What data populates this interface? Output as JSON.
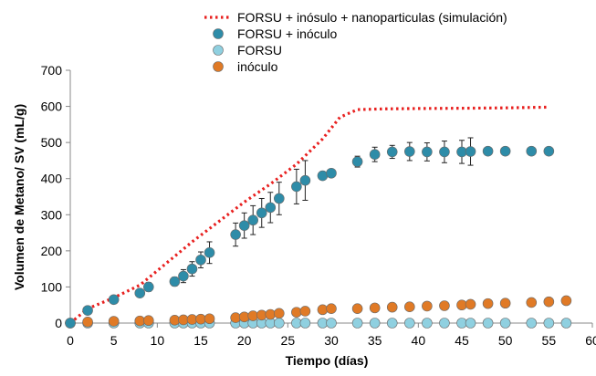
{
  "chart_data": {
    "type": "scatter",
    "xlabel": "Tiempo (días)",
    "ylabel": "Volumen de Metano/ SV (mL/g)",
    "xlim": [
      0,
      60
    ],
    "ylim": [
      0,
      700
    ],
    "x_ticks": [
      0,
      5,
      10,
      15,
      20,
      25,
      30,
      35,
      40,
      45,
      50,
      55,
      60
    ],
    "y_ticks": [
      0,
      100,
      200,
      300,
      400,
      500,
      600,
      700
    ],
    "grid": false,
    "legend_position": "top",
    "series": [
      {
        "name": "FORSU + inósulo + nanoparticulas (simulación)",
        "kind": "line",
        "style": "dotted",
        "color": "#e8201f",
        "points": [
          [
            0,
            0
          ],
          [
            2,
            40
          ],
          [
            5,
            70
          ],
          [
            8,
            105
          ],
          [
            11,
            165
          ],
          [
            14,
            225
          ],
          [
            17,
            280
          ],
          [
            20,
            335
          ],
          [
            23,
            385
          ],
          [
            26,
            440
          ],
          [
            29,
            510
          ],
          [
            31,
            570
          ],
          [
            33,
            591
          ],
          [
            36,
            593
          ],
          [
            40,
            594
          ],
          [
            45,
            595
          ],
          [
            50,
            596
          ],
          [
            55,
            598
          ]
        ]
      },
      {
        "name": "FORSU + inóculo",
        "kind": "markers",
        "color": "#2e8ca8",
        "points": [
          [
            0,
            0,
            0
          ],
          [
            2,
            35,
            0
          ],
          [
            5,
            65,
            0
          ],
          [
            8,
            83,
            10
          ],
          [
            9,
            100,
            12
          ],
          [
            12,
            115,
            12
          ],
          [
            13,
            130,
            18
          ],
          [
            14,
            150,
            20
          ],
          [
            15,
            175,
            22
          ],
          [
            16,
            195,
            30
          ],
          [
            19,
            245,
            32
          ],
          [
            20,
            270,
            35
          ],
          [
            21,
            285,
            40
          ],
          [
            22,
            305,
            40
          ],
          [
            23,
            320,
            42
          ],
          [
            24,
            345,
            45
          ],
          [
            26,
            378,
            48
          ],
          [
            27,
            395,
            55
          ],
          [
            29,
            408,
            0
          ],
          [
            30,
            415,
            0
          ],
          [
            33,
            447,
            15
          ],
          [
            35,
            467,
            20
          ],
          [
            37,
            474,
            18
          ],
          [
            39,
            475,
            25
          ],
          [
            41,
            474,
            25
          ],
          [
            43,
            474,
            30
          ],
          [
            45,
            474,
            32
          ],
          [
            46,
            475,
            38
          ],
          [
            48,
            476,
            0
          ],
          [
            50,
            476,
            0
          ],
          [
            53,
            476,
            0
          ],
          [
            55,
            476,
            0
          ]
        ]
      },
      {
        "name": "FORSU",
        "kind": "markers",
        "color": "#8fd0e0",
        "points": [
          [
            0,
            0
          ],
          [
            2,
            0
          ],
          [
            5,
            0
          ],
          [
            8,
            0
          ],
          [
            9,
            0
          ],
          [
            12,
            0
          ],
          [
            13,
            0
          ],
          [
            14,
            0
          ],
          [
            15,
            0
          ],
          [
            16,
            0
          ],
          [
            19,
            0
          ],
          [
            20,
            0
          ],
          [
            21,
            0
          ],
          [
            22,
            0
          ],
          [
            23,
            0
          ],
          [
            24,
            0
          ],
          [
            26,
            0
          ],
          [
            27,
            0
          ],
          [
            29,
            0
          ],
          [
            30,
            0
          ],
          [
            33,
            0
          ],
          [
            35,
            0
          ],
          [
            37,
            0
          ],
          [
            39,
            0
          ],
          [
            41,
            0
          ],
          [
            43,
            0
          ],
          [
            45,
            0
          ],
          [
            46,
            0
          ],
          [
            48,
            0
          ],
          [
            50,
            0
          ],
          [
            53,
            0
          ],
          [
            55,
            0
          ],
          [
            57,
            0
          ]
        ]
      },
      {
        "name": "inóculo",
        "kind": "markers",
        "color": "#e07a26",
        "points": [
          [
            0,
            0
          ],
          [
            2,
            3
          ],
          [
            5,
            5
          ],
          [
            8,
            6
          ],
          [
            9,
            7
          ],
          [
            12,
            8
          ],
          [
            13,
            9
          ],
          [
            14,
            10
          ],
          [
            15,
            11
          ],
          [
            16,
            12
          ],
          [
            19,
            15
          ],
          [
            20,
            17
          ],
          [
            21,
            20
          ],
          [
            22,
            22
          ],
          [
            23,
            24
          ],
          [
            24,
            27
          ],
          [
            26,
            30
          ],
          [
            27,
            33
          ],
          [
            29,
            37
          ],
          [
            30,
            40
          ],
          [
            33,
            40
          ],
          [
            35,
            42
          ],
          [
            37,
            44
          ],
          [
            39,
            45
          ],
          [
            41,
            47
          ],
          [
            43,
            48
          ],
          [
            45,
            50
          ],
          [
            46,
            52
          ],
          [
            48,
            54
          ],
          [
            50,
            55
          ],
          [
            53,
            57
          ],
          [
            55,
            59
          ],
          [
            57,
            62
          ]
        ]
      }
    ]
  }
}
